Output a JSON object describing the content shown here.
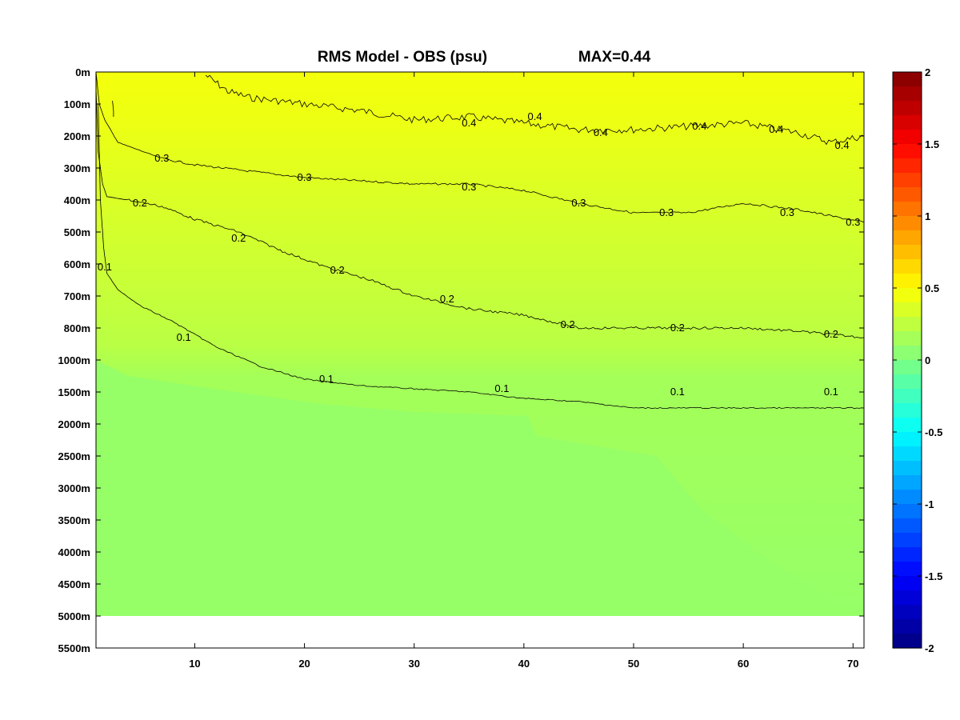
{
  "title": "RMS Model - OBS (psu)",
  "max_label": "MAX=0.44",
  "chart_data": {
    "type": "heatmap",
    "subtype": "contour-section",
    "title": "RMS Model - OBS (psu)",
    "annotation": "MAX=0.44",
    "max_value": 0.44,
    "xlabel": "",
    "ylabel": "",
    "xlim": [
      1,
      71
    ],
    "x_ticks": [
      10,
      20,
      30,
      40,
      50,
      60,
      70
    ],
    "y_tick_labels": [
      "0m",
      "100m",
      "200m",
      "300m",
      "400m",
      "500m",
      "600m",
      "700m",
      "800m",
      "1000m",
      "1500m",
      "2000m",
      "2500m",
      "3000m",
      "3500m",
      "4000m",
      "4500m",
      "5000m",
      "5500m"
    ],
    "grid": false,
    "colormap": "jet",
    "colorbar": {
      "range": [
        -2,
        2
      ],
      "ticks": [
        "2",
        "1.5",
        "1",
        "0.5",
        "0",
        "-0.5",
        "-1",
        "-1.5",
        "-2"
      ],
      "levels": 40,
      "position": "right"
    },
    "contour_levels": [
      0.1,
      0.2,
      0.3,
      0.4
    ],
    "contours": [
      {
        "level": 0.4,
        "points": [
          [
            11,
            0.1
          ],
          [
            13,
            0.6
          ],
          [
            15,
            0.8
          ],
          [
            20,
            1.0
          ],
          [
            25,
            1.2
          ],
          [
            30,
            1.5
          ],
          [
            35,
            1.4
          ],
          [
            40,
            1.6
          ],
          [
            45,
            1.8
          ],
          [
            50,
            1.8
          ],
          [
            55,
            1.7
          ],
          [
            60,
            1.6
          ],
          [
            65,
            1.9
          ],
          [
            68,
            2.2
          ],
          [
            71,
            2.0
          ]
        ]
      },
      {
        "level": 0.3,
        "points": [
          [
            1,
            0.0
          ],
          [
            1.3,
            1.0
          ],
          [
            1.8,
            1.5
          ],
          [
            3,
            2.2
          ],
          [
            7,
            2.7
          ],
          [
            10,
            2.9
          ],
          [
            15,
            3.1
          ],
          [
            20,
            3.3
          ],
          [
            25,
            3.4
          ],
          [
            30,
            3.5
          ],
          [
            35,
            3.5
          ],
          [
            40,
            3.7
          ],
          [
            45,
            4.1
          ],
          [
            50,
            4.4
          ],
          [
            55,
            4.4
          ],
          [
            60,
            4.1
          ],
          [
            65,
            4.3
          ],
          [
            71,
            4.7
          ]
        ]
      },
      {
        "level": 0.2,
        "points": [
          [
            1,
            0.5
          ],
          [
            1.2,
            2.5
          ],
          [
            1.6,
            3.5
          ],
          [
            2,
            3.9
          ],
          [
            4,
            4.0
          ],
          [
            7,
            4.2
          ],
          [
            10,
            4.6
          ],
          [
            14,
            5.0
          ],
          [
            18,
            5.6
          ],
          [
            22,
            6.1
          ],
          [
            26,
            6.5
          ],
          [
            30,
            7.0
          ],
          [
            35,
            7.4
          ],
          [
            40,
            7.6
          ],
          [
            45,
            8.0
          ],
          [
            50,
            8.0
          ],
          [
            55,
            8.0
          ],
          [
            60,
            8.0
          ],
          [
            65,
            8.1
          ],
          [
            71,
            8.3
          ]
        ]
      },
      {
        "level": 0.1,
        "points": [
          [
            1.2,
            1.0
          ],
          [
            1.4,
            4.0
          ],
          [
            1.7,
            5.5
          ],
          [
            2,
            6.3
          ],
          [
            3,
            6.8
          ],
          [
            5,
            7.3
          ],
          [
            8,
            7.8
          ],
          [
            12,
            8.6
          ],
          [
            16,
            9.2
          ],
          [
            20,
            9.6
          ],
          [
            25,
            9.8
          ],
          [
            30,
            9.9
          ],
          [
            35,
            10.0
          ],
          [
            40,
            10.2
          ],
          [
            45,
            10.3
          ],
          [
            50,
            10.5
          ],
          [
            55,
            10.5
          ],
          [
            60,
            10.5
          ],
          [
            65,
            10.5
          ],
          [
            71,
            10.5
          ]
        ]
      },
      {
        "level": 0.1,
        "points": [
          [
            2.5,
            0.9
          ],
          [
            2.6,
            1.2
          ],
          [
            2.6,
            1.4
          ]
        ]
      }
    ],
    "contour_labels": [
      {
        "text": "0.4",
        "x": 47,
        "y": 1.9
      },
      {
        "text": "0.4",
        "x": 56,
        "y": 1.7
      },
      {
        "text": "0.4",
        "x": 63,
        "y": 1.8
      },
      {
        "text": "0.4",
        "x": 69,
        "y": 2.3
      },
      {
        "text": "0.4",
        "x": 35,
        "y": 1.6
      },
      {
        "text": "0.4",
        "x": 41,
        "y": 1.4
      },
      {
        "text": "0.3",
        "x": 7,
        "y": 2.7
      },
      {
        "text": "0.3",
        "x": 20,
        "y": 3.3
      },
      {
        "text": "0.3",
        "x": 35,
        "y": 3.6
      },
      {
        "text": "0.3",
        "x": 45,
        "y": 4.1
      },
      {
        "text": "0.3",
        "x": 53,
        "y": 4.4
      },
      {
        "text": "0.3",
        "x": 64,
        "y": 4.4
      },
      {
        "text": "0.3",
        "x": 70,
        "y": 4.7
      },
      {
        "text": "0.2",
        "x": 5,
        "y": 4.1
      },
      {
        "text": "0.2",
        "x": 14,
        "y": 5.2
      },
      {
        "text": "0.2",
        "x": 23,
        "y": 6.2
      },
      {
        "text": "0.2",
        "x": 33,
        "y": 7.1
      },
      {
        "text": "0.2",
        "x": 44,
        "y": 7.9
      },
      {
        "text": "0.2",
        "x": 54,
        "y": 8.0
      },
      {
        "text": "0.2",
        "x": 68,
        "y": 8.2
      },
      {
        "text": "0.1",
        "x": 1.8,
        "y": 6.1
      },
      {
        "text": "0.1",
        "x": 9,
        "y": 8.3
      },
      {
        "text": "0.1",
        "x": 22,
        "y": 9.6
      },
      {
        "text": "0.1",
        "x": 38,
        "y": 9.9
      },
      {
        "text": "0.1",
        "x": 54,
        "y": 10.0
      },
      {
        "text": "0.1",
        "x": 68,
        "y": 10.0
      }
    ],
    "bottom_depth_level": 17,
    "bottom_depth_label": "5000m"
  }
}
